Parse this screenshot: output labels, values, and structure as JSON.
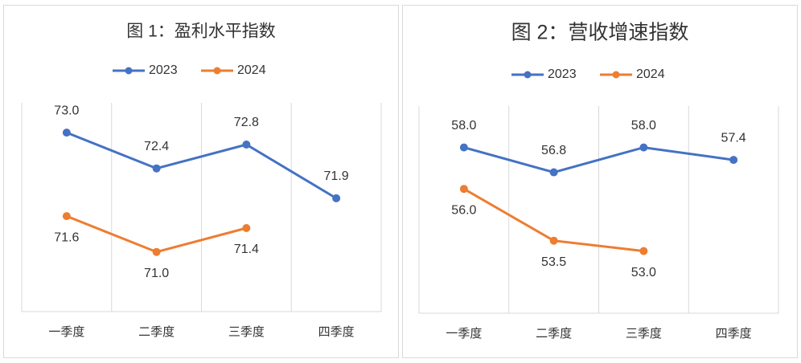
{
  "chart_data": [
    {
      "type": "line",
      "title": "图 1：盈利水平指数",
      "categories": [
        "一季度",
        "二季度",
        "三季度",
        "四季度"
      ],
      "series": [
        {
          "name": "2023",
          "color": "#4472c4",
          "values": [
            73.0,
            72.4,
            72.8,
            71.9
          ],
          "value_labels": [
            "73.0",
            "72.4",
            "72.8",
            "71.9"
          ]
        },
        {
          "name": "2024",
          "color": "#ed7d31",
          "values": [
            71.6,
            71.0,
            71.4,
            null
          ],
          "value_labels": [
            "71.6",
            "71.0",
            "71.4",
            null
          ]
        }
      ],
      "ylim": [
        70,
        73.5
      ],
      "legend": "top"
    },
    {
      "type": "line",
      "title": "图 2：营收增速指数",
      "categories": [
        "一季度",
        "二季度",
        "三季度",
        "四季度"
      ],
      "series": [
        {
          "name": "2023",
          "color": "#4472c4",
          "values": [
            58.0,
            56.8,
            58.0,
            57.4
          ],
          "value_labels": [
            "58.0",
            "56.8",
            "58.0",
            "57.4"
          ]
        },
        {
          "name": "2024",
          "color": "#ed7d31",
          "values": [
            56.0,
            53.5,
            53.0,
            null
          ],
          "value_labels": [
            "56.0",
            "53.5",
            "53.0",
            null
          ]
        }
      ],
      "ylim": [
        50,
        60
      ],
      "legend": "top"
    }
  ]
}
